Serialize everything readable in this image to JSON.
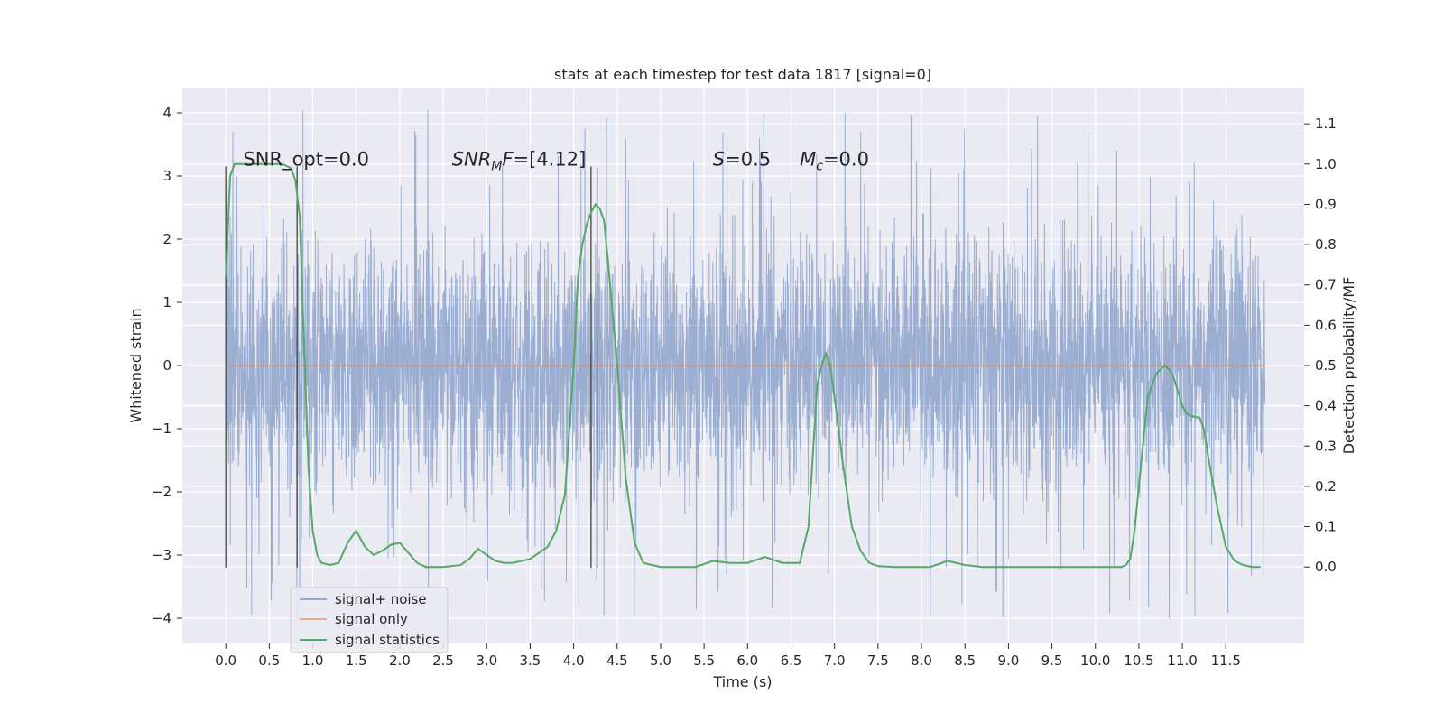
{
  "chart_data": {
    "type": "line",
    "title": "stats at each timestep for test data 1817 [signal=0]",
    "xlabel": "Time (s)",
    "ylabel": "Whitened strain",
    "y2label": "Detection probability/MF",
    "xlim": [
      -0.5,
      12.4
    ],
    "ylim": [
      -4.4,
      4.4
    ],
    "y2lim": [
      -0.19,
      1.19
    ],
    "x_ticks": [
      0.0,
      0.5,
      1.0,
      1.5,
      2.0,
      2.5,
      3.0,
      3.5,
      4.0,
      4.5,
      5.0,
      5.5,
      6.0,
      6.5,
      7.0,
      7.5,
      8.0,
      8.5,
      9.0,
      9.5,
      10.0,
      10.5,
      11.0,
      11.5
    ],
    "x_tick_labels": [
      "0.0",
      "0.5",
      "1.0",
      "1.5",
      "2.0",
      "2.5",
      "3.0",
      "3.5",
      "4.0",
      "4.5",
      "5.0",
      "5.5",
      "6.0",
      "6.5",
      "7.0",
      "7.5",
      "8.0",
      "8.5",
      "9.0",
      "9.5",
      "10.0",
      "10.5",
      "11.0",
      "11.5"
    ],
    "y_ticks": [
      -4,
      -3,
      -2,
      -1,
      0,
      1,
      2,
      3,
      4
    ],
    "y_tick_labels": [
      "−4",
      "−3",
      "−2",
      "−1",
      "0",
      "1",
      "2",
      "3",
      "4"
    ],
    "y2_ticks": [
      0.0,
      0.1,
      0.2,
      0.3,
      0.4,
      0.5,
      0.6,
      0.7,
      0.8,
      0.9,
      1.0,
      1.1
    ],
    "y2_tick_labels": [
      "0.0",
      "0.1",
      "0.2",
      "0.3",
      "0.4",
      "0.5",
      "0.6",
      "0.7",
      "0.8",
      "0.9",
      "1.0",
      "1.1"
    ],
    "grid": true,
    "legend_position": "lower-left",
    "colors": {
      "background": "#eaeaf2",
      "grid": "#ffffff",
      "noise": "#4c72b0",
      "signal": "#dd8452",
      "stats": "#55a868",
      "vline": "#444444"
    },
    "series": [
      {
        "name": "signal+ noise",
        "axis": "left",
        "x_range": [
          0.0,
          11.95
        ],
        "envelope_core": [
          -1.3,
          1.3
        ],
        "envelope_typical": [
          -2.6,
          2.8
        ],
        "envelope_extreme": [
          -4.05,
          4.05
        ]
      },
      {
        "name": "signal only",
        "axis": "left",
        "x": [
          0.0,
          11.95
        ],
        "y": [
          0.0,
          0.0
        ]
      },
      {
        "name": "signal statistics",
        "axis": "right",
        "x": [
          0.0,
          0.05,
          0.1,
          0.2,
          0.3,
          0.4,
          0.5,
          0.6,
          0.65,
          0.7,
          0.75,
          0.8,
          0.85,
          0.9,
          0.95,
          1.0,
          1.05,
          1.1,
          1.2,
          1.3,
          1.4,
          1.5,
          1.6,
          1.7,
          1.8,
          1.9,
          2.0,
          2.1,
          2.2,
          2.3,
          2.5,
          2.7,
          2.8,
          2.9,
          3.0,
          3.1,
          3.2,
          3.3,
          3.5,
          3.7,
          3.8,
          3.9,
          4.0,
          4.05,
          4.1,
          4.15,
          4.2,
          4.25,
          4.3,
          4.35,
          4.4,
          4.5,
          4.6,
          4.7,
          4.8,
          5.0,
          5.2,
          5.4,
          5.6,
          5.8,
          6.0,
          6.2,
          6.4,
          6.6,
          6.7,
          6.8,
          6.85,
          6.9,
          6.95,
          7.0,
          7.1,
          7.2,
          7.3,
          7.4,
          7.5,
          7.7,
          7.9,
          8.1,
          8.3,
          8.5,
          8.7,
          9.0,
          9.5,
          10.0,
          10.3,
          10.35,
          10.4,
          10.45,
          10.5,
          10.6,
          10.7,
          10.75,
          10.8,
          10.85,
          10.9,
          11.0,
          11.05,
          11.1,
          11.2,
          11.25,
          11.3,
          11.4,
          11.5,
          11.6,
          11.7,
          11.8,
          11.9
        ],
        "y": [
          0.72,
          0.97,
          1.0,
          1.0,
          1.0,
          1.0,
          1.0,
          1.0,
          1.0,
          0.995,
          0.99,
          0.96,
          0.87,
          0.55,
          0.25,
          0.09,
          0.03,
          0.01,
          0.005,
          0.01,
          0.06,
          0.09,
          0.05,
          0.03,
          0.04,
          0.055,
          0.06,
          0.035,
          0.01,
          0.0,
          0.0,
          0.005,
          0.02,
          0.045,
          0.03,
          0.015,
          0.01,
          0.01,
          0.02,
          0.05,
          0.09,
          0.18,
          0.5,
          0.72,
          0.8,
          0.85,
          0.88,
          0.9,
          0.89,
          0.86,
          0.75,
          0.5,
          0.22,
          0.06,
          0.01,
          0.0,
          0.0,
          0.0,
          0.015,
          0.01,
          0.01,
          0.025,
          0.01,
          0.01,
          0.1,
          0.45,
          0.5,
          0.53,
          0.5,
          0.42,
          0.25,
          0.1,
          0.04,
          0.01,
          0.002,
          0.0,
          0.0,
          0.0,
          0.015,
          0.005,
          0.0,
          0.0,
          0.0,
          0.0,
          0.0,
          0.005,
          0.02,
          0.09,
          0.2,
          0.42,
          0.48,
          0.49,
          0.5,
          0.49,
          0.47,
          0.4,
          0.38,
          0.375,
          0.37,
          0.34,
          0.27,
          0.15,
          0.05,
          0.015,
          0.005,
          0.0,
          0.0
        ]
      }
    ],
    "vlines": [
      {
        "x": 0.0,
        "y_span": [
          -3.2,
          3.15
        ]
      },
      {
        "x": 0.82,
        "y_span": [
          -3.2,
          3.15
        ]
      },
      {
        "x": 4.2,
        "y_span": [
          -3.2,
          3.15
        ]
      },
      {
        "x": 4.27,
        "y_span": [
          -3.2,
          3.15
        ]
      }
    ],
    "annotations": [
      {
        "key": "snr_opt",
        "text": "SNR_opt=0.0",
        "x": 0.2,
        "y": 3.15
      },
      {
        "key": "snr_mf",
        "text": "SNRMF=[4.12]",
        "x": 2.6,
        "y": 3.15
      },
      {
        "key": "s",
        "text": "S=0.5",
        "x": 5.6,
        "y": 3.15
      },
      {
        "key": "mc",
        "text": "Mc=0.0",
        "x": 6.6,
        "y": 3.15
      }
    ]
  }
}
